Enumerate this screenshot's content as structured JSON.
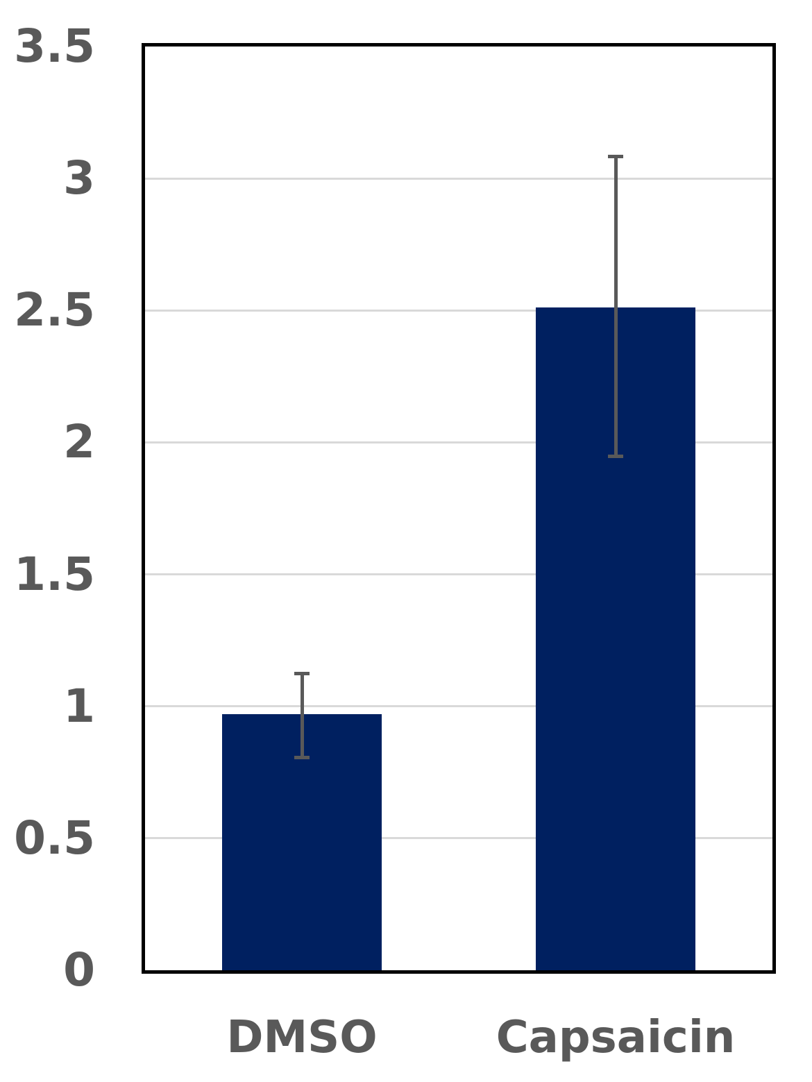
{
  "chart_data": {
    "type": "bar",
    "categories": [
      "DMSO",
      "Capsaicin"
    ],
    "values": [
      0.97,
      2.51
    ],
    "error_high": [
      1.13,
      3.09
    ],
    "error_low": [
      0.8,
      1.94
    ],
    "title": "",
    "xlabel": "",
    "ylabel": "",
    "ylim": [
      0,
      3.5
    ],
    "yticks": [
      0,
      0.5,
      1,
      1.5,
      2,
      2.5,
      3,
      3.5
    ],
    "ytick_labels": [
      "0",
      "0.5",
      "1",
      "1.5",
      "2",
      "2.5",
      "3",
      "3.5"
    ],
    "grid": true,
    "legend": "none",
    "colors": {
      "bar_fill": "#002060",
      "error_bar": "#595959",
      "axis_label": "#595959",
      "gridline": "#d9d9d9",
      "plot_border": "#000000",
      "background": "#ffffff"
    }
  }
}
